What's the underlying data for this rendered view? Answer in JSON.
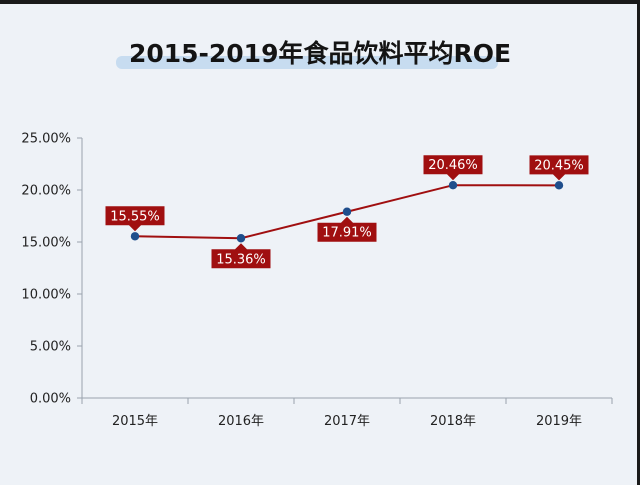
{
  "chart_data": {
    "type": "line",
    "title": "2015-2019年食品饮料平均ROE",
    "categories": [
      "2015年",
      "2016年",
      "2017年",
      "2018年",
      "2019年"
    ],
    "values": [
      15.55,
      15.36,
      17.91,
      20.46,
      20.45
    ],
    "data_labels": [
      "15.55%",
      "15.36%",
      "17.91%",
      "20.46%",
      "20.45%"
    ],
    "label_positions": [
      "above",
      "below",
      "below",
      "above",
      "above"
    ],
    "ylim": [
      0,
      25
    ],
    "yticks": [
      0,
      5,
      10,
      15,
      20,
      25
    ],
    "ytick_labels": [
      "0.00%",
      "5.00%",
      "10.00%",
      "15.00%",
      "20.00%",
      "25.00%"
    ],
    "grid": false,
    "legend": "none",
    "colors": {
      "line": "#a00f10",
      "marker": "#1f4e8c",
      "label_bg": "#a00f10",
      "background": "#eef2f7",
      "title_highlight": "#c7dcf0"
    }
  }
}
